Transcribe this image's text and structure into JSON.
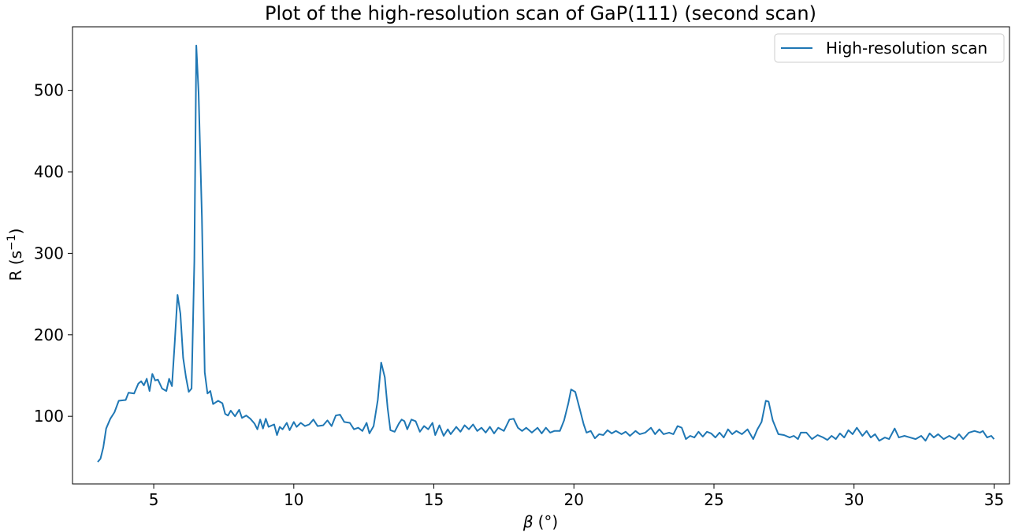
{
  "chart_data": {
    "type": "line",
    "title": "Plot of the high-resolution scan of GaP(111) (second scan)",
    "xlabel": {
      "symbol": "β",
      "unit": "(°)"
    },
    "ylabel": {
      "base": "R (s",
      "sup": "−1",
      "close": ")"
    },
    "xlim": [
      2.1,
      35.55
    ],
    "ylim": [
      17,
      578
    ],
    "xticks": [
      "5",
      "10",
      "15",
      "20",
      "25",
      "30",
      "35"
    ],
    "yticks": [
      "100",
      "200",
      "300",
      "400",
      "500"
    ],
    "grid": false,
    "legend": {
      "position": "top-right",
      "entries": [
        "High-resolution scan"
      ]
    },
    "series": [
      {
        "name": "High-resolution scan",
        "color": "#1f77b4",
        "keypoints": [
          [
            3.0,
            44
          ],
          [
            3.1,
            48
          ],
          [
            3.2,
            62
          ],
          [
            3.3,
            85
          ],
          [
            3.45,
            97
          ],
          [
            3.6,
            105
          ],
          [
            3.75,
            119
          ],
          [
            4.0,
            120
          ],
          [
            4.1,
            129
          ],
          [
            4.3,
            128
          ],
          [
            4.45,
            140
          ],
          [
            4.55,
            143
          ],
          [
            4.65,
            138
          ],
          [
            4.75,
            146
          ],
          [
            4.85,
            131
          ],
          [
            4.95,
            152
          ],
          [
            5.05,
            144
          ],
          [
            5.15,
            145
          ],
          [
            5.3,
            134
          ],
          [
            5.45,
            131
          ],
          [
            5.55,
            146
          ],
          [
            5.65,
            137
          ],
          [
            5.75,
            190
          ],
          [
            5.85,
            249
          ],
          [
            5.95,
            226
          ],
          [
            6.05,
            172
          ],
          [
            6.15,
            148
          ],
          [
            6.25,
            130
          ],
          [
            6.35,
            134
          ],
          [
            6.45,
            290
          ],
          [
            6.52,
            555
          ],
          [
            6.6,
            497
          ],
          [
            6.72,
            345
          ],
          [
            6.82,
            154
          ],
          [
            6.92,
            128
          ],
          [
            7.02,
            131
          ],
          [
            7.12,
            115
          ],
          [
            7.3,
            119
          ],
          [
            7.45,
            116
          ],
          [
            7.55,
            103
          ],
          [
            7.65,
            101
          ],
          [
            7.75,
            107
          ],
          [
            7.9,
            100
          ],
          [
            8.05,
            108
          ],
          [
            8.15,
            98
          ],
          [
            8.3,
            101
          ],
          [
            8.45,
            97
          ],
          [
            8.6,
            91
          ],
          [
            8.7,
            84
          ],
          [
            8.8,
            96
          ],
          [
            8.9,
            85
          ],
          [
            9.0,
            97
          ],
          [
            9.1,
            87
          ],
          [
            9.3,
            90
          ],
          [
            9.4,
            77
          ],
          [
            9.5,
            87
          ],
          [
            9.6,
            84
          ],
          [
            9.75,
            92
          ],
          [
            9.85,
            83
          ],
          [
            10.0,
            93
          ],
          [
            10.1,
            87
          ],
          [
            10.25,
            92
          ],
          [
            10.4,
            88
          ],
          [
            10.55,
            90
          ],
          [
            10.7,
            96
          ],
          [
            10.85,
            88
          ],
          [
            11.05,
            89
          ],
          [
            11.2,
            95
          ],
          [
            11.35,
            88
          ],
          [
            11.5,
            101
          ],
          [
            11.65,
            102
          ],
          [
            11.8,
            93
          ],
          [
            12.0,
            92
          ],
          [
            12.15,
            84
          ],
          [
            12.3,
            86
          ],
          [
            12.45,
            82
          ],
          [
            12.6,
            92
          ],
          [
            12.7,
            79
          ],
          [
            12.85,
            88
          ],
          [
            13.0,
            120
          ],
          [
            13.12,
            166
          ],
          [
            13.25,
            148
          ],
          [
            13.35,
            110
          ],
          [
            13.45,
            83
          ],
          [
            13.6,
            81
          ],
          [
            13.75,
            91
          ],
          [
            13.85,
            96
          ],
          [
            13.95,
            94
          ],
          [
            14.05,
            84
          ],
          [
            14.2,
            96
          ],
          [
            14.35,
            94
          ],
          [
            14.5,
            81
          ],
          [
            14.65,
            88
          ],
          [
            14.8,
            84
          ],
          [
            14.95,
            92
          ],
          [
            15.05,
            77
          ],
          [
            15.2,
            89
          ],
          [
            15.35,
            76
          ],
          [
            15.5,
            84
          ],
          [
            15.6,
            78
          ],
          [
            15.8,
            87
          ],
          [
            15.95,
            81
          ],
          [
            16.1,
            89
          ],
          [
            16.25,
            84
          ],
          [
            16.4,
            90
          ],
          [
            16.55,
            82
          ],
          [
            16.7,
            86
          ],
          [
            16.85,
            80
          ],
          [
            17.0,
            87
          ],
          [
            17.15,
            79
          ],
          [
            17.3,
            86
          ],
          [
            17.5,
            82
          ],
          [
            17.7,
            96
          ],
          [
            17.85,
            97
          ],
          [
            18.0,
            86
          ],
          [
            18.15,
            82
          ],
          [
            18.3,
            86
          ],
          [
            18.5,
            80
          ],
          [
            18.7,
            86
          ],
          [
            18.85,
            79
          ],
          [
            19.0,
            86
          ],
          [
            19.15,
            80
          ],
          [
            19.3,
            82
          ],
          [
            19.5,
            82
          ],
          [
            19.65,
            95
          ],
          [
            19.8,
            116
          ],
          [
            19.9,
            133
          ],
          [
            20.05,
            130
          ],
          [
            20.2,
            110
          ],
          [
            20.35,
            90
          ],
          [
            20.45,
            80
          ],
          [
            20.6,
            82
          ],
          [
            20.75,
            73
          ],
          [
            20.9,
            78
          ],
          [
            21.05,
            77
          ],
          [
            21.2,
            83
          ],
          [
            21.35,
            79
          ],
          [
            21.5,
            82
          ],
          [
            21.7,
            78
          ],
          [
            21.85,
            81
          ],
          [
            22.0,
            76
          ],
          [
            22.2,
            82
          ],
          [
            22.35,
            78
          ],
          [
            22.55,
            80
          ],
          [
            22.75,
            86
          ],
          [
            22.9,
            78
          ],
          [
            23.05,
            84
          ],
          [
            23.2,
            78
          ],
          [
            23.4,
            80
          ],
          [
            23.55,
            78
          ],
          [
            23.7,
            88
          ],
          [
            23.85,
            86
          ],
          [
            24.0,
            72
          ],
          [
            24.15,
            76
          ],
          [
            24.3,
            74
          ],
          [
            24.45,
            81
          ],
          [
            24.6,
            75
          ],
          [
            24.75,
            81
          ],
          [
            24.9,
            79
          ],
          [
            25.05,
            74
          ],
          [
            25.2,
            80
          ],
          [
            25.35,
            74
          ],
          [
            25.5,
            84
          ],
          [
            25.65,
            78
          ],
          [
            25.8,
            82
          ],
          [
            26.0,
            78
          ],
          [
            26.2,
            84
          ],
          [
            26.4,
            72
          ],
          [
            26.55,
            84
          ],
          [
            26.7,
            93
          ],
          [
            26.85,
            119
          ],
          [
            26.95,
            118
          ],
          [
            27.1,
            95
          ],
          [
            27.3,
            78
          ],
          [
            27.5,
            77
          ],
          [
            27.7,
            74
          ],
          [
            27.85,
            76
          ],
          [
            28.0,
            72
          ],
          [
            28.1,
            80
          ],
          [
            28.3,
            80
          ],
          [
            28.5,
            72
          ],
          [
            28.7,
            77
          ],
          [
            28.9,
            74
          ],
          [
            29.05,
            71
          ],
          [
            29.2,
            76
          ],
          [
            29.35,
            72
          ],
          [
            29.5,
            79
          ],
          [
            29.65,
            74
          ],
          [
            29.8,
            83
          ],
          [
            29.95,
            78
          ],
          [
            30.1,
            86
          ],
          [
            30.3,
            76
          ],
          [
            30.45,
            82
          ],
          [
            30.6,
            74
          ],
          [
            30.75,
            78
          ],
          [
            30.9,
            70
          ],
          [
            31.1,
            74
          ],
          [
            31.25,
            72
          ],
          [
            31.45,
            85
          ],
          [
            31.6,
            74
          ],
          [
            31.8,
            76
          ],
          [
            32.0,
            74
          ],
          [
            32.2,
            72
          ],
          [
            32.4,
            76
          ],
          [
            32.55,
            70
          ],
          [
            32.7,
            79
          ],
          [
            32.85,
            74
          ],
          [
            33.0,
            78
          ],
          [
            33.2,
            72
          ],
          [
            33.4,
            76
          ],
          [
            33.6,
            72
          ],
          [
            33.75,
            78
          ],
          [
            33.9,
            72
          ],
          [
            34.1,
            80
          ],
          [
            34.3,
            82
          ],
          [
            34.5,
            80
          ],
          [
            34.6,
            82
          ],
          [
            34.75,
            74
          ],
          [
            34.9,
            76
          ],
          [
            35.0,
            72
          ]
        ]
      }
    ]
  }
}
